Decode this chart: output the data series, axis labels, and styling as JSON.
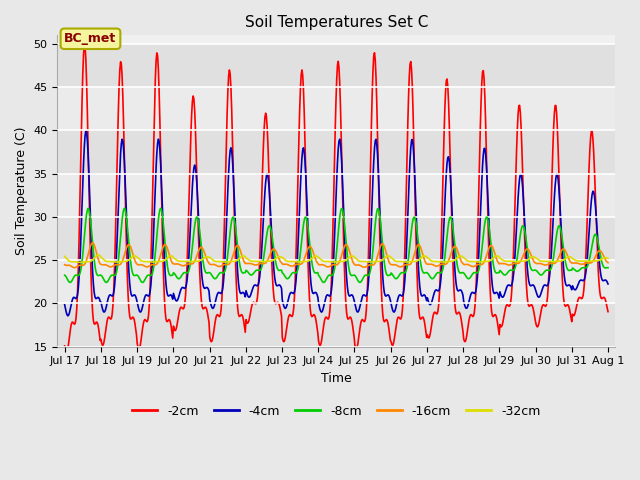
{
  "title": "Soil Temperatures Set C",
  "xlabel": "Time",
  "ylabel": "Soil Temperature (C)",
  "ylim": [
    15,
    51
  ],
  "yticks": [
    15,
    20,
    25,
    30,
    35,
    40,
    45,
    50
  ],
  "series_colors": [
    "#ff0000",
    "#0000bb",
    "#00cc00",
    "#ff8800",
    "#dddd00"
  ],
  "series_labels": [
    "-2cm",
    "-4cm",
    "-8cm",
    "-16cm",
    "-32cm"
  ],
  "annotation_text": "BC_met",
  "fig_bg": "#e8e8e8",
  "ax_bg": "#f0f0f0",
  "title_fontsize": 11,
  "legend_fontsize": 9,
  "tick_fontsize": 8,
  "label_fontsize": 9,
  "mean_temp": 25.0,
  "amp_2cm": [
    25,
    23,
    24,
    19,
    22,
    17,
    22,
    23,
    24,
    23,
    21,
    22,
    18,
    18,
    15
  ],
  "amp_4cm": [
    15,
    14,
    14,
    11,
    13,
    10,
    13,
    14,
    14,
    14,
    12,
    13,
    10,
    10,
    8
  ],
  "amp_8cm": [
    6,
    6,
    6,
    5,
    5,
    4,
    5,
    6,
    6,
    5,
    5,
    5,
    4,
    4,
    3
  ],
  "amp_16cm": [
    2.0,
    1.8,
    1.8,
    1.5,
    1.7,
    1.3,
    1.6,
    1.8,
    1.9,
    1.8,
    1.6,
    1.7,
    1.3,
    1.3,
    1.1
  ],
  "amp_32cm": [
    0.6,
    0.5,
    0.5,
    0.4,
    0.5,
    0.4,
    0.5,
    0.5,
    0.5,
    0.5,
    0.5,
    0.5,
    0.4,
    0.4,
    0.3
  ],
  "phase_2cm": 0.0,
  "phase_4cm": 0.04,
  "phase_8cm": 0.1,
  "phase_16cm": 0.22,
  "phase_32cm": 0.38,
  "peak_hour": 0.55,
  "sharpness": 4.0
}
